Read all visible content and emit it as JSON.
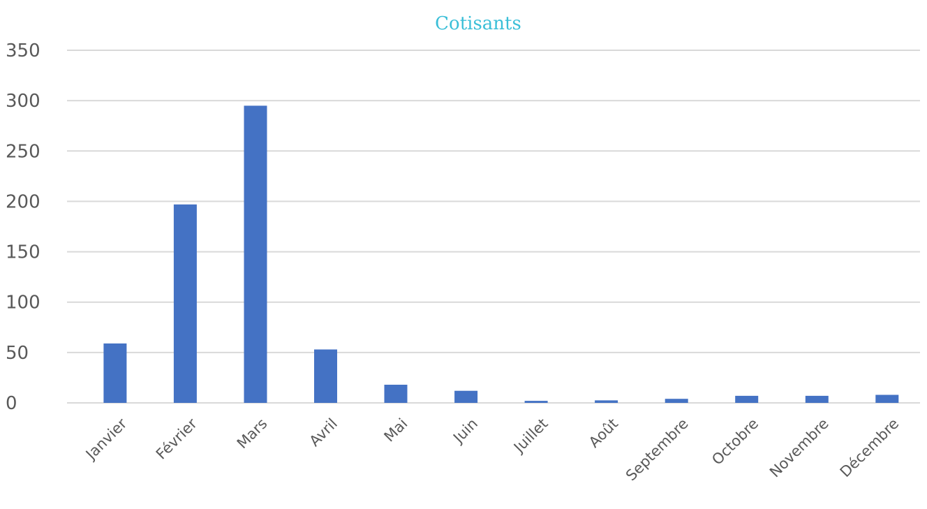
{
  "chart_data": {
    "type": "bar",
    "title": "Cotisants",
    "xlabel": "",
    "ylabel": "",
    "categories": [
      "Janvier",
      "Février",
      "Mars",
      "Avril",
      "Mai",
      "Juin",
      "Juillet",
      "Août",
      "Septembre",
      "Octobre",
      "Novembre",
      "Décembre"
    ],
    "series": [
      {
        "values": [
          59,
          197,
          295,
          53,
          18,
          12,
          2,
          2.5,
          4,
          7,
          7,
          8
        ]
      }
    ],
    "ylim": [
      0,
      350
    ],
    "yticks": [
      "0",
      "50",
      "100",
      "150",
      "200",
      "250",
      "300",
      "350"
    ],
    "grid": true,
    "legend": "none",
    "colors": {
      "bar": "#4472c4",
      "title": "#3bbfd8",
      "grid": "#d9d9d9",
      "tick_text": "#595959"
    }
  }
}
